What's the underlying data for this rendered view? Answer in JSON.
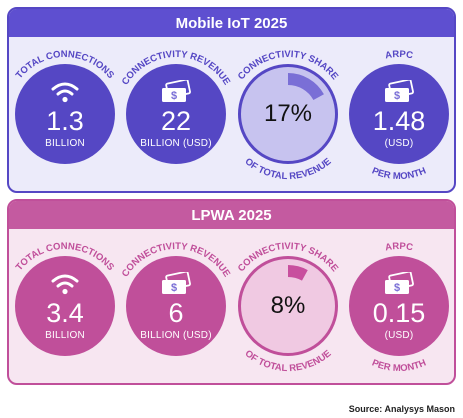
{
  "colors": {
    "iot_dark": "#5547c4",
    "iot_light": "#c7c3ef",
    "iot_header": "#5e4fd0",
    "iot_bg": "#ecebfa",
    "iot_share_arc": "#7a6fd6",
    "lpwa_dark": "#c04f9a",
    "lpwa_light": "#f0c9e2",
    "lpwa_header": "#c45aa0",
    "lpwa_bg": "#f7e6f1",
    "lpwa_share_arc": "#c84f9e"
  },
  "sections": [
    {
      "title": "Mobile IoT 2025",
      "metrics": [
        {
          "kind": "connections",
          "label": "TOTAL CONNECTIONS",
          "value": "1.3",
          "unit": "BILLION",
          "icon": "wifi-icon"
        },
        {
          "kind": "revenue",
          "label": "CONNECTIVITY REVENUE",
          "value": "22",
          "unit": "BILLION (USD)",
          "icon": "banknote-icon"
        },
        {
          "kind": "share",
          "label": "CONNECTIVITY SHARE",
          "label_bottom": "OF TOTAL REVENUE",
          "value": "17%",
          "share_fraction": 0.17
        },
        {
          "kind": "arpc",
          "label": "ARPC",
          "label_bottom": "PER MONTH",
          "value": "1.48",
          "unit": "(USD)",
          "icon": "banknote-icon"
        }
      ]
    },
    {
      "title": "LPWA 2025",
      "metrics": [
        {
          "kind": "connections",
          "label": "TOTAL CONNECTIONS",
          "value": "3.4",
          "unit": "BILLION",
          "icon": "wifi-icon"
        },
        {
          "kind": "revenue",
          "label": "CONNECTIVITY REVENUE",
          "value": "6",
          "unit": "BILLION (USD)",
          "icon": "banknote-icon"
        },
        {
          "kind": "share",
          "label": "CONNECTIVITY SHARE",
          "label_bottom": "OF TOTAL REVENUE",
          "value": "8%",
          "share_fraction": 0.08
        },
        {
          "kind": "arpc",
          "label": "ARPC",
          "label_bottom": "PER MONTH",
          "value": "0.15",
          "unit": "(USD)",
          "icon": "banknote-icon"
        }
      ]
    }
  ],
  "source": "Source: Analysys Mason"
}
